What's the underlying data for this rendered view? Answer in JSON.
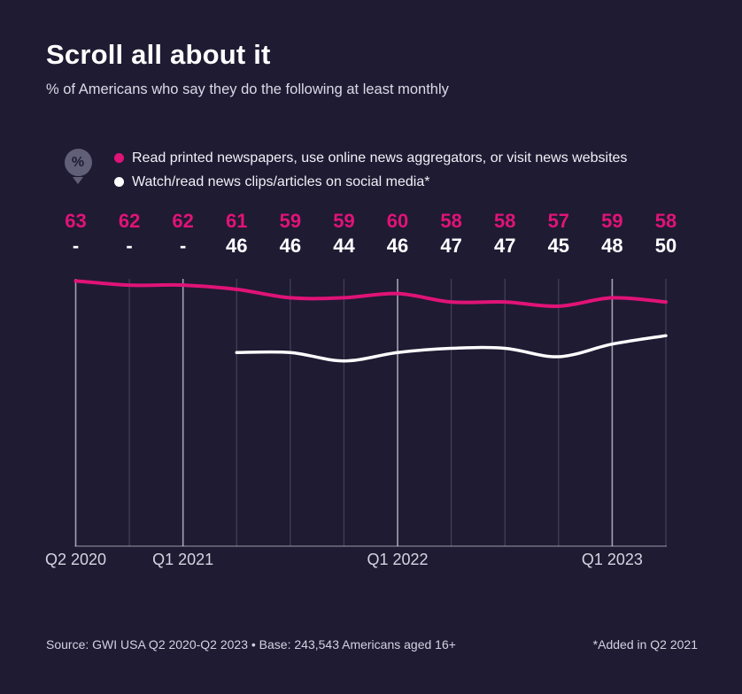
{
  "header": {
    "title": "Scroll all about it",
    "subtitle": "% of Americans who say they do the following at least monthly"
  },
  "legend": {
    "icon_text": "%",
    "items": [
      {
        "label": "Read printed newspapers, use online news aggregators, or visit news websites",
        "color": "#e01377"
      },
      {
        "label": "Watch/read news clips/articles on social media*",
        "color": "#ffffff"
      }
    ]
  },
  "chart_data": {
    "type": "line",
    "n_points": 12,
    "x_labels_shown": [
      {
        "index": 0,
        "label": "Q2 2020"
      },
      {
        "index": 2,
        "label": "Q1 2021"
      },
      {
        "index": 6,
        "label": "Q1 2022"
      },
      {
        "index": 10,
        "label": "Q1 2023"
      }
    ],
    "series": [
      {
        "name": "Read printed newspapers, use online news aggregators, or visit news websites",
        "color": "#e01377",
        "values": [
          63,
          62,
          62,
          61,
          59,
          59,
          60,
          58,
          58,
          57,
          59,
          58
        ]
      },
      {
        "name": "Watch/read news clips/articles on social media*",
        "color": "#ffffff",
        "values": [
          null,
          null,
          null,
          46,
          46,
          44,
          46,
          47,
          47,
          45,
          48,
          50
        ]
      }
    ],
    "missing_value_display": "-",
    "ylim": [
      0,
      63.5
    ],
    "grid": "vertical",
    "legend_position": "top"
  },
  "footer": {
    "source": "Source: GWI USA Q2 2020-Q2 2023 • Base: 243,543 Americans aged 16+",
    "note": "*Added in Q2 2021"
  }
}
